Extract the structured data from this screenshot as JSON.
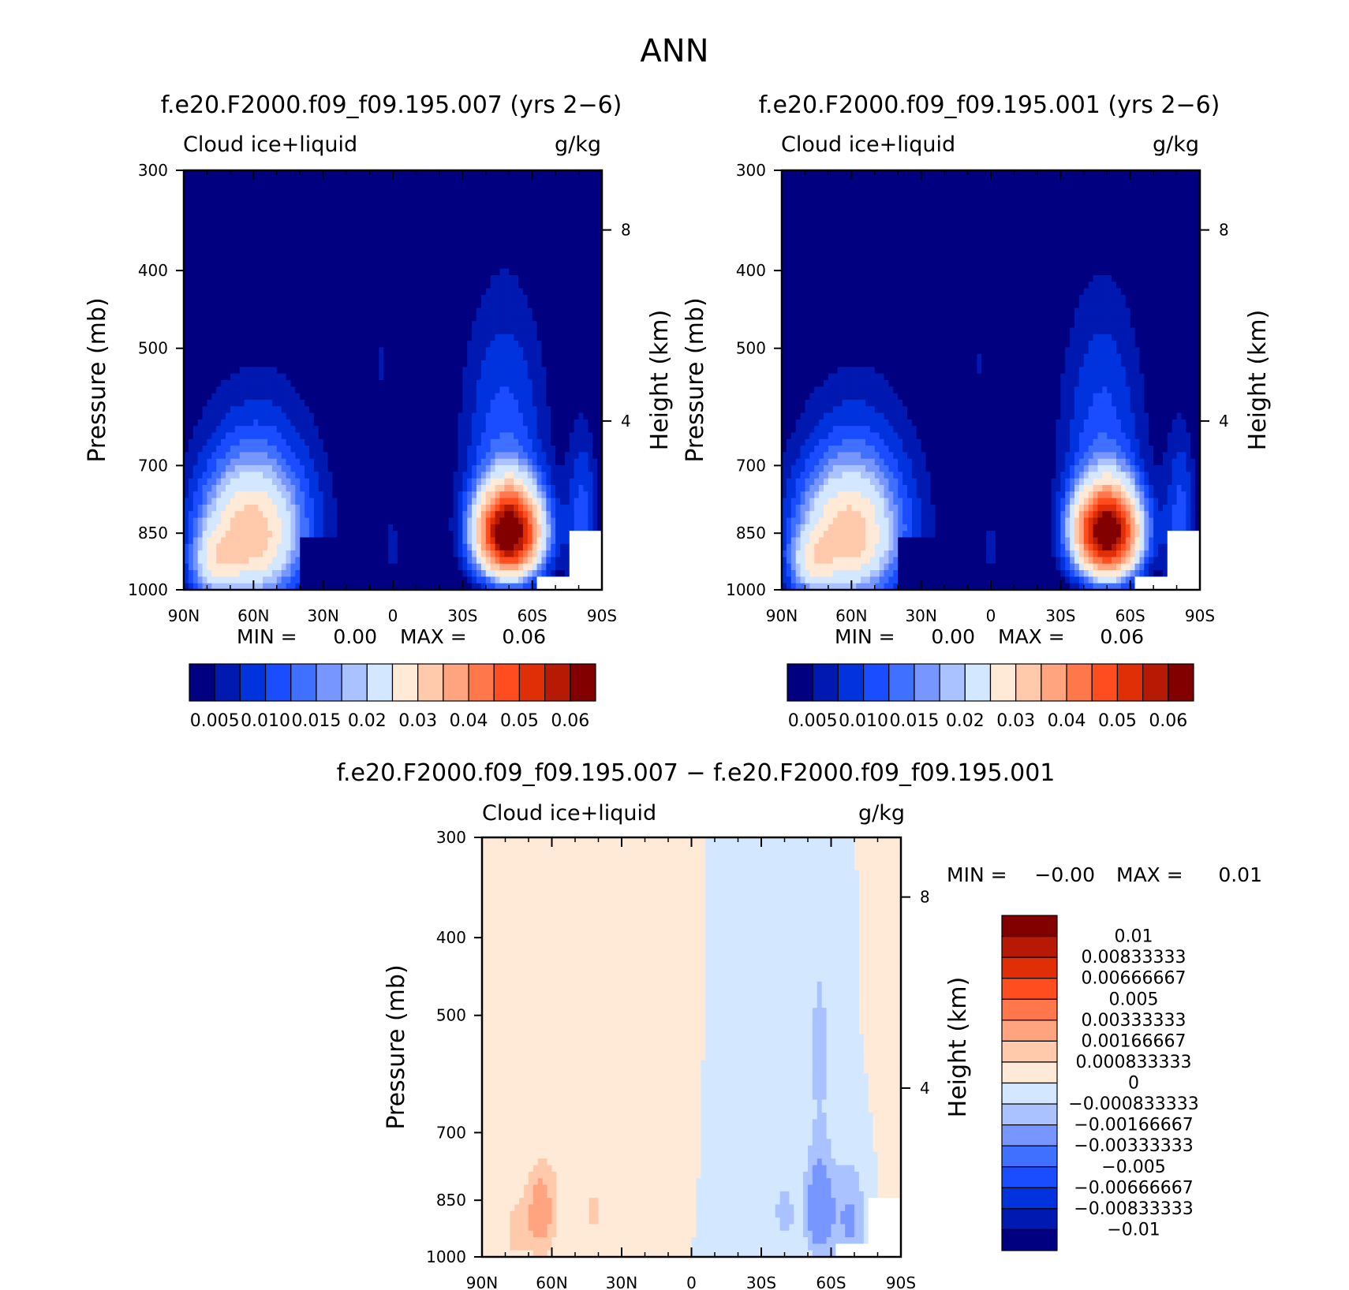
{
  "figure": {
    "title": "ANN",
    "colors": {
      "main": [
        "#000080",
        "#0019b0",
        "#0033dd",
        "#1a4dff",
        "#4070ff",
        "#7896ff",
        "#aac2ff",
        "#d3e7ff",
        "#ffe9d7",
        "#ffc9ac",
        "#ffa47f",
        "#ff774a",
        "#ff4d1f",
        "#e02e06",
        "#b61a05",
        "#830000"
      ],
      "diff": [
        "#000080",
        "#0019b0",
        "#0033dd",
        "#1a4dff",
        "#4070ff",
        "#7896ff",
        "#aac2ff",
        "#d3e7ff",
        "#ffe9d7",
        "#ffc9ac",
        "#ffa47f",
        "#ff774a",
        "#ff4d1f",
        "#e02e06",
        "#b61a05",
        "#830000"
      ]
    }
  },
  "chart_data": [
    {
      "type": "heatmap",
      "title": "f.e20.F2000.f09_f09.195.007 (yrs 2−6)",
      "left_label": "Cloud  ice+liquid",
      "right_label": "g/kg",
      "ylabel": "Pressure (mb)",
      "y2label": "Height (km)",
      "x_ticks": [
        "90N",
        "60N",
        "30N",
        "0",
        "30S",
        "60S",
        "90S"
      ],
      "x_range": [
        90,
        -90
      ],
      "y_ticks": [
        "300",
        "400",
        "500",
        "700",
        "850",
        "1000"
      ],
      "y_tick_values": [
        300,
        400,
        500,
        700,
        850,
        1000
      ],
      "y_range": [
        300,
        1000
      ],
      "y2_ticks": [
        "8",
        "4"
      ],
      "min_label": "MIN =",
      "min_value": "0.00",
      "max_label": "MAX =",
      "max_value": "0.06",
      "colorbar_labels": [
        "0.005",
        "0.010",
        "0.015",
        "0.02",
        "0.03",
        "0.04",
        "0.05",
        "0.06"
      ],
      "peaks": [
        {
          "lat": 55,
          "p": 850,
          "value": 0.028
        },
        {
          "lat": 75,
          "p": 930,
          "value": 0.03
        },
        {
          "lat": -50,
          "p": 850,
          "value": 0.06
        }
      ]
    },
    {
      "type": "heatmap",
      "title": "f.e20.F2000.f09_f09.195.001 (yrs 2−6)",
      "left_label": "Cloud  ice+liquid",
      "right_label": "g/kg",
      "ylabel": "Pressure (mb)",
      "y2label": "Height (km)",
      "x_ticks": [
        "90N",
        "60N",
        "30N",
        "0",
        "30S",
        "60S",
        "90S"
      ],
      "x_range": [
        90,
        -90
      ],
      "y_ticks": [
        "300",
        "400",
        "500",
        "700",
        "850",
        "1000"
      ],
      "y_tick_values": [
        300,
        400,
        500,
        700,
        850,
        1000
      ],
      "y_range": [
        300,
        1000
      ],
      "y2_ticks": [
        "8",
        "4"
      ],
      "min_label": "MIN =",
      "min_value": "0.00",
      "max_label": "MAX =",
      "max_value": "0.06",
      "colorbar_labels": [
        "0.005",
        "0.010",
        "0.015",
        "0.02",
        "0.03",
        "0.04",
        "0.05",
        "0.06"
      ],
      "peaks": [
        {
          "lat": 55,
          "p": 850,
          "value": 0.027
        },
        {
          "lat": 75,
          "p": 930,
          "value": 0.03
        },
        {
          "lat": -50,
          "p": 850,
          "value": 0.06
        }
      ]
    },
    {
      "type": "heatmap",
      "title": "f.e20.F2000.f09_f09.195.007 − f.e20.F2000.f09_f09.195.001",
      "left_label": "Cloud  ice+liquid",
      "right_label": "g/kg",
      "ylabel": "Pressure (mb)",
      "y2label": "Height (km)",
      "x_ticks": [
        "90N",
        "60N",
        "30N",
        "0",
        "30S",
        "60S",
        "90S"
      ],
      "x_range": [
        90,
        -90
      ],
      "y_ticks": [
        "300",
        "400",
        "500",
        "700",
        "850",
        "1000"
      ],
      "y_tick_values": [
        300,
        400,
        500,
        700,
        850,
        1000
      ],
      "y_range": [
        300,
        1000
      ],
      "y2_ticks": [
        "8",
        "4"
      ],
      "min_label": "MIN =",
      "min_value": "−0.00",
      "max_label": "MAX =",
      "max_value": "0.01",
      "colorbar_labels": [
        "0.01",
        "0.00833333",
        "0.00666667",
        "0.005",
        "0.00333333",
        "0.00166667",
        "0.000833333",
        "0",
        "−0.000833333",
        "−0.00166667",
        "−0.00333333",
        "−0.005",
        "−0.00666667",
        "−0.00833333",
        "−0.01"
      ]
    }
  ]
}
